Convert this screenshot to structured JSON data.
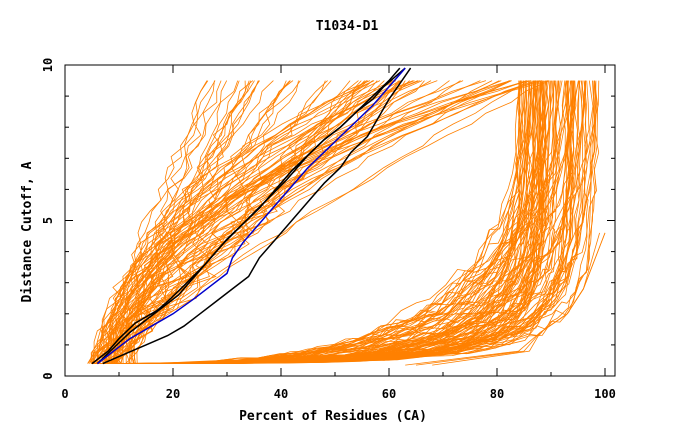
{
  "chart_data": {
    "type": "line",
    "title": "T1034-D1",
    "xlabel": "Percent of Residues (CA)",
    "ylabel": "Distance Cutoff, A",
    "xlim": [
      0,
      100
    ],
    "ylim": [
      0,
      10
    ],
    "x_ticks": [
      "0",
      "20",
      "40",
      "60",
      "80",
      "100"
    ],
    "y_ticks": [
      "0",
      "5",
      "10"
    ],
    "grid": false,
    "colors": {
      "background_models": "#ff8000",
      "highlight_1": "#000000",
      "highlight_2": "#0000cc"
    },
    "highlighted_series": [
      {
        "color": "#000000",
        "x": [
          5,
          8,
          10,
          13,
          17,
          19,
          22,
          26,
          29,
          33,
          37,
          41,
          45,
          48,
          51,
          54,
          57,
          59,
          61,
          63
        ],
        "y": [
          0.4,
          0.8,
          1.2,
          1.7,
          2.1,
          2.4,
          2.9,
          3.6,
          4.2,
          4.9,
          5.6,
          6.3,
          7.1,
          7.6,
          8.0,
          8.5,
          8.9,
          9.3,
          9.6,
          9.9
        ]
      },
      {
        "color": "#000000",
        "x": [
          6,
          9,
          12,
          15,
          18,
          21,
          24,
          27,
          30,
          33,
          36,
          39,
          42,
          45,
          48,
          51,
          54,
          57,
          60,
          62
        ],
        "y": [
          0.4,
          0.9,
          1.4,
          1.8,
          2.2,
          2.6,
          3.2,
          3.8,
          4.4,
          4.9,
          5.4,
          6.0,
          6.6,
          7.1,
          7.6,
          8.0,
          8.5,
          9.0,
          9.5,
          9.9
        ]
      },
      {
        "color": "#000000",
        "x": [
          7,
          11,
          15,
          19,
          22,
          25,
          28,
          31,
          34,
          36,
          39,
          42,
          45,
          48,
          51,
          53,
          56,
          58,
          60,
          62,
          64
        ],
        "y": [
          0.4,
          0.7,
          1.0,
          1.3,
          1.6,
          2.0,
          2.4,
          2.8,
          3.2,
          3.8,
          4.4,
          5.0,
          5.6,
          6.2,
          6.7,
          7.2,
          7.7,
          8.3,
          8.9,
          9.4,
          9.9
        ]
      },
      {
        "color": "#0000cc",
        "x": [
          6,
          9,
          12,
          16,
          20,
          24,
          27,
          30,
          31,
          33,
          36,
          39,
          42,
          45,
          48,
          51,
          54,
          57,
          60,
          63
        ],
        "y": [
          0.4,
          0.8,
          1.2,
          1.6,
          2.0,
          2.5,
          2.9,
          3.3,
          3.8,
          4.3,
          4.9,
          5.5,
          6.1,
          6.7,
          7.2,
          7.7,
          8.2,
          8.7,
          9.3,
          9.9
        ]
      }
    ]
  }
}
